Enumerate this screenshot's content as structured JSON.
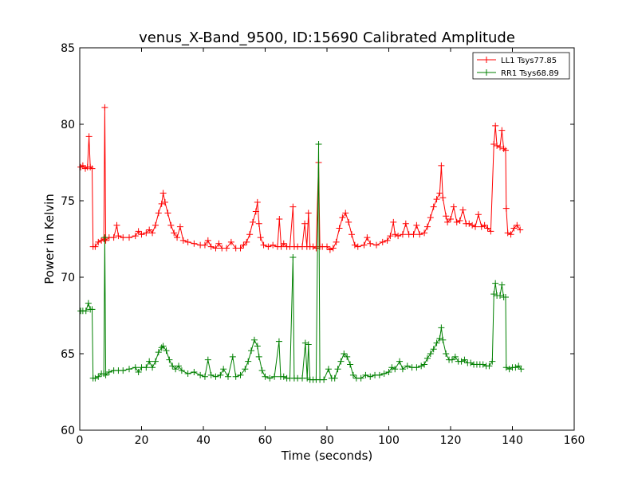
{
  "chart_data": {
    "type": "line",
    "title": "venus_X-Band_9500, ID:15690 Calibrated Amplitude",
    "xlabel": "Time (seconds)",
    "ylabel": "Power in Kelvin",
    "xlim": [
      0,
      160
    ],
    "ylim": [
      60,
      85
    ],
    "xticks": [
      0,
      20,
      40,
      60,
      80,
      100,
      120,
      140,
      160
    ],
    "yticks": [
      60,
      65,
      70,
      75,
      80,
      85
    ],
    "xtick_labels": [
      "0",
      "20",
      "40",
      "60",
      "80",
      "100",
      "120",
      "140",
      "160"
    ],
    "ytick_labels": [
      "60",
      "65",
      "70",
      "75",
      "80",
      "85"
    ],
    "grid": false,
    "legend_position": "top-right",
    "marker": "+",
    "series": [
      {
        "name": "LL1 Tsys77.85",
        "color": "#ff0000",
        "points": [
          [
            0.3,
            77.2
          ],
          [
            1.0,
            77.3
          ],
          [
            1.8,
            77.1
          ],
          [
            2.5,
            77.2
          ],
          [
            3.0,
            79.2
          ],
          [
            3.4,
            77.2
          ],
          [
            4.0,
            77.1
          ],
          [
            4.3,
            72.0
          ],
          [
            5.0,
            72.0
          ],
          [
            6.0,
            72.3
          ],
          [
            7.0,
            72.4
          ],
          [
            7.8,
            72.5
          ],
          [
            8.1,
            81.1
          ],
          [
            8.4,
            72.4
          ],
          [
            9.5,
            72.6
          ],
          [
            11.0,
            72.6
          ],
          [
            12.0,
            73.4
          ],
          [
            12.5,
            72.7
          ],
          [
            14.0,
            72.6
          ],
          [
            16.0,
            72.6
          ],
          [
            18.0,
            72.7
          ],
          [
            19.0,
            73.0
          ],
          [
            20.0,
            72.8
          ],
          [
            21.5,
            72.9
          ],
          [
            22.5,
            73.1
          ],
          [
            23.5,
            72.9
          ],
          [
            24.5,
            73.4
          ],
          [
            25.5,
            74.2
          ],
          [
            26.5,
            74.8
          ],
          [
            27.0,
            75.5
          ],
          [
            27.6,
            74.9
          ],
          [
            28.5,
            74.2
          ],
          [
            29.5,
            73.4
          ],
          [
            30.5,
            72.9
          ],
          [
            31.5,
            72.6
          ],
          [
            32.5,
            73.3
          ],
          [
            33.5,
            72.4
          ],
          [
            35.0,
            72.3
          ],
          [
            37.0,
            72.2
          ],
          [
            39.0,
            72.1
          ],
          [
            40.5,
            72.1
          ],
          [
            41.5,
            72.4
          ],
          [
            42.5,
            72.0
          ],
          [
            44.0,
            71.9
          ],
          [
            45.0,
            72.2
          ],
          [
            46.0,
            71.9
          ],
          [
            47.5,
            71.9
          ],
          [
            49.0,
            72.3
          ],
          [
            50.5,
            71.9
          ],
          [
            52.0,
            71.9
          ],
          [
            53.0,
            72.1
          ],
          [
            54.0,
            72.3
          ],
          [
            55.0,
            72.8
          ],
          [
            56.0,
            73.6
          ],
          [
            57.0,
            74.3
          ],
          [
            57.5,
            74.9
          ],
          [
            58.0,
            73.5
          ],
          [
            58.5,
            72.6
          ],
          [
            59.5,
            72.1
          ],
          [
            61.0,
            72.0
          ],
          [
            62.5,
            72.1
          ],
          [
            64.0,
            72.0
          ],
          [
            64.6,
            73.8
          ],
          [
            65.2,
            72.0
          ],
          [
            66.0,
            72.2
          ],
          [
            67.0,
            72.0
          ],
          [
            68.0,
            72.0
          ],
          [
            69.0,
            74.6
          ],
          [
            69.4,
            72.0
          ],
          [
            70.5,
            72.0
          ],
          [
            72.0,
            72.0
          ],
          [
            72.8,
            73.5
          ],
          [
            73.5,
            72.0
          ],
          [
            74.0,
            74.2
          ],
          [
            74.5,
            72.0
          ],
          [
            75.5,
            72.0
          ],
          [
            76.5,
            71.9
          ],
          [
            77.3,
            77.5
          ],
          [
            77.7,
            72.0
          ],
          [
            78.5,
            72.0
          ],
          [
            80.0,
            72.0
          ],
          [
            81.0,
            71.8
          ],
          [
            82.0,
            71.9
          ],
          [
            83.0,
            72.3
          ],
          [
            84.0,
            73.2
          ],
          [
            85.0,
            73.9
          ],
          [
            86.0,
            74.2
          ],
          [
            87.0,
            73.6
          ],
          [
            88.0,
            72.8
          ],
          [
            89.0,
            72.1
          ],
          [
            90.0,
            72.0
          ],
          [
            92.0,
            72.1
          ],
          [
            93.0,
            72.6
          ],
          [
            94.0,
            72.2
          ],
          [
            96.0,
            72.1
          ],
          [
            98.0,
            72.3
          ],
          [
            99.5,
            72.4
          ],
          [
            100.5,
            72.7
          ],
          [
            101.5,
            73.6
          ],
          [
            102.0,
            72.8
          ],
          [
            103.0,
            72.7
          ],
          [
            104.5,
            72.8
          ],
          [
            105.5,
            73.5
          ],
          [
            106.5,
            72.8
          ],
          [
            108.0,
            72.8
          ],
          [
            109.0,
            73.4
          ],
          [
            110.0,
            72.8
          ],
          [
            111.5,
            72.9
          ],
          [
            112.5,
            73.3
          ],
          [
            113.5,
            73.9
          ],
          [
            114.5,
            74.6
          ],
          [
            115.5,
            75.1
          ],
          [
            116.5,
            75.5
          ],
          [
            117.0,
            77.3
          ],
          [
            117.5,
            75.2
          ],
          [
            118.5,
            74.0
          ],
          [
            119.0,
            73.6
          ],
          [
            120.0,
            73.8
          ],
          [
            121.0,
            74.6
          ],
          [
            122.0,
            73.6
          ],
          [
            123.0,
            73.7
          ],
          [
            124.0,
            74.4
          ],
          [
            125.0,
            73.5
          ],
          [
            126.0,
            73.5
          ],
          [
            127.0,
            73.4
          ],
          [
            128.0,
            73.3
          ],
          [
            129.0,
            74.1
          ],
          [
            130.0,
            73.3
          ],
          [
            131.0,
            73.4
          ],
          [
            132.0,
            73.2
          ],
          [
            133.0,
            73.0
          ],
          [
            134.0,
            78.7
          ],
          [
            134.5,
            79.9
          ],
          [
            135.0,
            78.6
          ],
          [
            136.0,
            78.5
          ],
          [
            136.6,
            79.6
          ],
          [
            137.2,
            78.4
          ],
          [
            137.8,
            78.3
          ],
          [
            138.0,
            74.5
          ],
          [
            138.5,
            72.9
          ],
          [
            139.5,
            72.8
          ],
          [
            140.5,
            73.2
          ],
          [
            141.5,
            73.4
          ],
          [
            142.5,
            73.1
          ]
        ]
      },
      {
        "name": "RR1 Tsys68.89",
        "color": "#008000",
        "points": [
          [
            0.3,
            67.8
          ],
          [
            1.0,
            67.8
          ],
          [
            2.0,
            67.8
          ],
          [
            2.8,
            68.3
          ],
          [
            3.4,
            67.9
          ],
          [
            4.0,
            67.9
          ],
          [
            4.3,
            63.4
          ],
          [
            5.0,
            63.4
          ],
          [
            6.0,
            63.5
          ],
          [
            7.0,
            63.7
          ],
          [
            7.8,
            63.7
          ],
          [
            8.1,
            72.6
          ],
          [
            8.4,
            63.6
          ],
          [
            9.5,
            63.8
          ],
          [
            11.0,
            63.9
          ],
          [
            12.5,
            63.9
          ],
          [
            14.0,
            63.9
          ],
          [
            16.0,
            64.0
          ],
          [
            18.0,
            64.1
          ],
          [
            19.0,
            63.8
          ],
          [
            20.0,
            64.1
          ],
          [
            21.5,
            64.1
          ],
          [
            22.5,
            64.5
          ],
          [
            23.5,
            64.1
          ],
          [
            24.5,
            64.5
          ],
          [
            25.5,
            65.1
          ],
          [
            26.5,
            65.4
          ],
          [
            27.0,
            65.5
          ],
          [
            28.0,
            65.2
          ],
          [
            29.0,
            64.6
          ],
          [
            30.0,
            64.2
          ],
          [
            31.0,
            64.0
          ],
          [
            32.0,
            64.2
          ],
          [
            33.0,
            63.9
          ],
          [
            35.0,
            63.7
          ],
          [
            37.0,
            63.8
          ],
          [
            39.0,
            63.6
          ],
          [
            40.5,
            63.5
          ],
          [
            41.5,
            64.6
          ],
          [
            42.5,
            63.6
          ],
          [
            44.0,
            63.5
          ],
          [
            45.5,
            63.6
          ],
          [
            46.5,
            64.0
          ],
          [
            48.0,
            63.5
          ],
          [
            49.5,
            64.8
          ],
          [
            50.5,
            63.5
          ],
          [
            52.0,
            63.6
          ],
          [
            53.5,
            64.0
          ],
          [
            54.5,
            64.5
          ],
          [
            55.5,
            65.2
          ],
          [
            56.5,
            65.9
          ],
          [
            57.5,
            65.5
          ],
          [
            58.0,
            64.8
          ],
          [
            59.0,
            63.9
          ],
          [
            60.0,
            63.5
          ],
          [
            61.5,
            63.4
          ],
          [
            63.0,
            63.5
          ],
          [
            64.5,
            65.8
          ],
          [
            65.0,
            63.5
          ],
          [
            66.0,
            63.5
          ],
          [
            67.0,
            63.4
          ],
          [
            68.0,
            63.4
          ],
          [
            69.0,
            71.3
          ],
          [
            69.4,
            63.4
          ],
          [
            70.5,
            63.4
          ],
          [
            72.0,
            63.4
          ],
          [
            73.0,
            65.7
          ],
          [
            73.6,
            63.4
          ],
          [
            74.0,
            65.6
          ],
          [
            74.5,
            63.3
          ],
          [
            75.5,
            63.3
          ],
          [
            76.5,
            63.3
          ],
          [
            77.3,
            78.7
          ],
          [
            77.7,
            63.3
          ],
          [
            79.0,
            63.3
          ],
          [
            80.5,
            64.0
          ],
          [
            81.5,
            63.4
          ],
          [
            82.5,
            63.4
          ],
          [
            83.5,
            64.0
          ],
          [
            84.5,
            64.5
          ],
          [
            85.5,
            65.0
          ],
          [
            86.5,
            64.8
          ],
          [
            87.5,
            64.3
          ],
          [
            88.5,
            63.6
          ],
          [
            89.5,
            63.4
          ],
          [
            91.0,
            63.4
          ],
          [
            92.5,
            63.6
          ],
          [
            94.0,
            63.5
          ],
          [
            95.5,
            63.6
          ],
          [
            97.0,
            63.6
          ],
          [
            98.5,
            63.7
          ],
          [
            100.0,
            63.8
          ],
          [
            101.0,
            64.1
          ],
          [
            102.0,
            64.0
          ],
          [
            103.5,
            64.5
          ],
          [
            104.5,
            64.0
          ],
          [
            106.0,
            64.2
          ],
          [
            107.5,
            64.1
          ],
          [
            109.0,
            64.1
          ],
          [
            110.5,
            64.2
          ],
          [
            111.5,
            64.3
          ],
          [
            112.5,
            64.7
          ],
          [
            113.5,
            65.0
          ],
          [
            114.5,
            65.3
          ],
          [
            115.5,
            65.7
          ],
          [
            116.5,
            66.0
          ],
          [
            117.0,
            66.7
          ],
          [
            117.5,
            65.9
          ],
          [
            118.5,
            65.0
          ],
          [
            119.5,
            64.6
          ],
          [
            120.5,
            64.6
          ],
          [
            121.5,
            64.8
          ],
          [
            122.5,
            64.5
          ],
          [
            123.5,
            64.5
          ],
          [
            124.5,
            64.6
          ],
          [
            125.5,
            64.4
          ],
          [
            126.5,
            64.4
          ],
          [
            127.5,
            64.3
          ],
          [
            128.5,
            64.3
          ],
          [
            129.5,
            64.3
          ],
          [
            130.5,
            64.3
          ],
          [
            131.5,
            64.2
          ],
          [
            132.5,
            64.2
          ],
          [
            133.5,
            64.5
          ],
          [
            134.0,
            68.9
          ],
          [
            134.5,
            69.6
          ],
          [
            135.0,
            68.8
          ],
          [
            136.0,
            68.8
          ],
          [
            136.6,
            69.5
          ],
          [
            137.2,
            68.7
          ],
          [
            137.8,
            68.7
          ],
          [
            138.0,
            64.1
          ],
          [
            139.0,
            64.0
          ],
          [
            140.0,
            64.1
          ],
          [
            141.0,
            64.1
          ],
          [
            142.0,
            64.2
          ],
          [
            142.8,
            64.0
          ]
        ]
      }
    ]
  }
}
